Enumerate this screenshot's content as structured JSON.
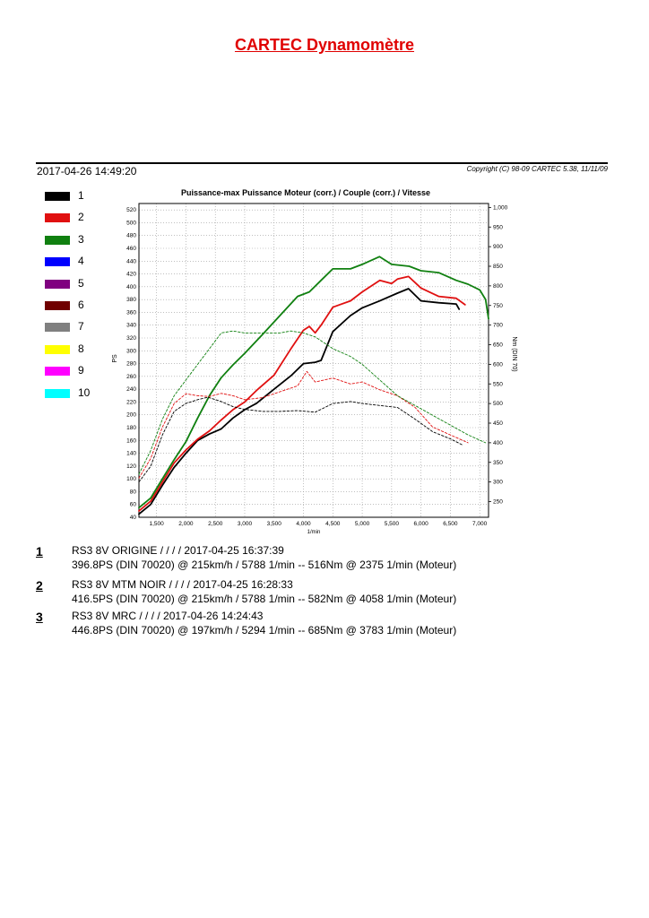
{
  "title": "CARTEC Dynamomètre",
  "header": {
    "datetime": "2017-04-26 14:49:20",
    "copyright": "Copyright (C) 98-09 CARTEC 5.38, 11/11/09"
  },
  "legend": [
    {
      "label": "1",
      "color": "#000000"
    },
    {
      "label": "2",
      "color": "#e01010"
    },
    {
      "label": "3",
      "color": "#108010"
    },
    {
      "label": "4",
      "color": "#0000ff"
    },
    {
      "label": "5",
      "color": "#800080"
    },
    {
      "label": "6",
      "color": "#700000"
    },
    {
      "label": "7",
      "color": "#808080"
    },
    {
      "label": "8",
      "color": "#ffff00"
    },
    {
      "label": "9",
      "color": "#ff00ff"
    },
    {
      "label": "10",
      "color": "#00ffff"
    }
  ],
  "runs": [
    {
      "num": "1",
      "line1": "RS3 8V ORIGINE  /  /  /  / 2017-04-25 16:37:39",
      "line2": "396.8PS (DIN 70020) @ 215km/h / 5788 1/min -- 516Nm @ 2375 1/min (Moteur)"
    },
    {
      "num": "2",
      "line1": "RS3 8V MTM NOIR  /  /  /  / 2017-04-25 16:28:33",
      "line2": "416.5PS (DIN 70020) @ 215km/h / 5788 1/min -- 582Nm @ 4058 1/min (Moteur)"
    },
    {
      "num": "3",
      "line1": "RS3 8V MRC  /  /  /  / 2017-04-26 14:24:43",
      "line2": "446.8PS (DIN 70020) @ 197km/h / 5294 1/min -- 685Nm @ 3783 1/min (Moteur)"
    }
  ],
  "chart_data": {
    "type": "line",
    "title": "Puissance-max Puissance Moteur (corr.) / Couple (corr.) / Vitesse",
    "xlabel": "1/min",
    "ylabel": "PS",
    "y2label": "Nm (DIN 70)",
    "xlim": [
      1200,
      7150
    ],
    "ylim": [
      40,
      530
    ],
    "y2lim": [
      210,
      1010
    ],
    "x_ticks": [
      1500,
      2000,
      2500,
      3000,
      3500,
      4000,
      4500,
      5000,
      5500,
      6000,
      6500,
      7000
    ],
    "x_tick_labels": [
      "1,500",
      "2,000",
      "2,500",
      "3,000",
      "3,500",
      "4,000",
      "4,500",
      "5,000",
      "5,500",
      "6,000",
      "6,500",
      "7,000"
    ],
    "y_ticks": [
      40,
      60,
      80,
      100,
      120,
      140,
      160,
      180,
      200,
      220,
      240,
      260,
      280,
      300,
      320,
      340,
      360,
      380,
      400,
      420,
      440,
      460,
      480,
      500,
      520
    ],
    "y2_ticks": [
      250,
      300,
      350,
      400,
      450,
      500,
      550,
      600,
      650,
      700,
      750,
      800,
      850,
      900,
      950,
      1000
    ],
    "y2_tick_labels": [
      "250",
      "300",
      "350",
      "400",
      "450",
      "500",
      "550",
      "600",
      "650",
      "700",
      "750",
      "800",
      "850",
      "900",
      "950",
      "1,000"
    ],
    "grid": true,
    "series": [
      {
        "name": "1",
        "kind": "power",
        "color": "#000000",
        "x": [
          1200,
          1400,
          1600,
          1800,
          2000,
          2200,
          2400,
          2600,
          2800,
          3000,
          3200,
          3500,
          3800,
          4000,
          4200,
          4300,
          4500,
          4800,
          5000,
          5300,
          5600,
          5788,
          6000,
          6300,
          6600,
          6650
        ],
        "y": [
          45,
          60,
          90,
          118,
          140,
          160,
          170,
          178,
          195,
          208,
          218,
          240,
          262,
          280,
          282,
          285,
          330,
          355,
          367,
          378,
          390,
          397,
          378,
          375,
          373,
          365
        ]
      },
      {
        "name": "2",
        "kind": "power",
        "color": "#e01010",
        "x": [
          1200,
          1400,
          1600,
          1800,
          2000,
          2200,
          2400,
          2600,
          2800,
          3000,
          3200,
          3500,
          3800,
          4000,
          4100,
          4200,
          4300,
          4500,
          4800,
          5000,
          5300,
          5500,
          5600,
          5788,
          6000,
          6300,
          6600,
          6750
        ],
        "y": [
          50,
          65,
          95,
          125,
          145,
          162,
          175,
          192,
          208,
          220,
          238,
          262,
          305,
          332,
          338,
          328,
          340,
          368,
          378,
          392,
          410,
          405,
          412,
          416,
          398,
          385,
          382,
          372
        ]
      },
      {
        "name": "3",
        "kind": "power",
        "color": "#108010",
        "x": [
          1200,
          1400,
          1600,
          1800,
          2000,
          2200,
          2400,
          2600,
          2800,
          3000,
          3300,
          3600,
          3900,
          4100,
          4300,
          4500,
          4800,
          5000,
          5294,
          5500,
          5800,
          6000,
          6300,
          6600,
          6800,
          7000,
          7100,
          7150
        ],
        "y": [
          55,
          70,
          100,
          130,
          158,
          195,
          230,
          258,
          278,
          296,
          325,
          355,
          385,
          392,
          410,
          428,
          428,
          435,
          447,
          435,
          432,
          425,
          422,
          410,
          404,
          395,
          380,
          350
        ]
      },
      {
        "name": "1",
        "kind": "torque",
        "color": "#000000",
        "x": [
          1200,
          1400,
          1600,
          1800,
          2000,
          2200,
          2375,
          2600,
          2800,
          3000,
          3300,
          3600,
          3900,
          4200,
          4500,
          4800,
          5000,
          5300,
          5600,
          5900,
          6200,
          6500,
          6700
        ],
        "y": [
          300,
          340,
          420,
          480,
          500,
          510,
          516,
          505,
          492,
          485,
          480,
          480,
          482,
          478,
          500,
          505,
          500,
          495,
          490,
          460,
          428,
          410,
          395
        ]
      },
      {
        "name": "2",
        "kind": "torque",
        "color": "#e01010",
        "x": [
          1200,
          1400,
          1600,
          1800,
          2000,
          2200,
          2400,
          2600,
          2800,
          3000,
          3300,
          3600,
          3900,
          4058,
          4200,
          4500,
          4800,
          5000,
          5300,
          5600,
          5900,
          6200,
          6500,
          6800
        ],
        "y": [
          310,
          360,
          440,
          500,
          525,
          520,
          518,
          526,
          520,
          510,
          515,
          530,
          545,
          582,
          555,
          565,
          550,
          555,
          535,
          520,
          490,
          440,
          420,
          400
        ]
      },
      {
        "name": "3",
        "kind": "torque",
        "color": "#108010",
        "x": [
          1200,
          1400,
          1600,
          1800,
          2000,
          2200,
          2400,
          2600,
          2800,
          3000,
          3300,
          3600,
          3783,
          4000,
          4200,
          4500,
          4800,
          5000,
          5300,
          5600,
          5900,
          6200,
          6500,
          6800,
          7100
        ],
        "y": [
          320,
          380,
          460,
          520,
          560,
          600,
          640,
          680,
          685,
          680,
          680,
          680,
          685,
          680,
          670,
          640,
          620,
          600,
          560,
          520,
          495,
          470,
          445,
          420,
          400
        ]
      }
    ]
  }
}
